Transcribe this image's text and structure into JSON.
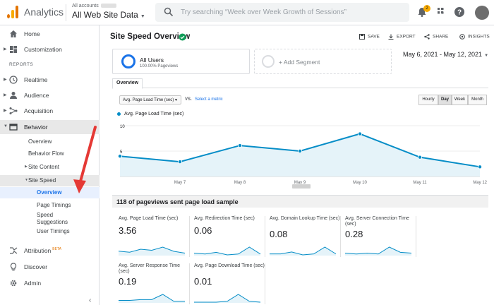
{
  "app": {
    "title": "Analytics",
    "account_crumb": "All accounts",
    "account_name": "All Web Site Data",
    "search_placeholder": "Try searching “Week over Week Growth of Sessions”",
    "notification_count": "2"
  },
  "sidebar": {
    "top_items": [
      {
        "label": "Home",
        "icon": "home-icon"
      },
      {
        "label": "Customization",
        "icon": "dashboard-icon"
      }
    ],
    "reports_heading": "REPORTS",
    "report_items": [
      {
        "label": "Realtime",
        "icon": "clock-icon"
      },
      {
        "label": "Audience",
        "icon": "person-icon"
      },
      {
        "label": "Acquisition",
        "icon": "acquisition-icon"
      },
      {
        "label": "Behavior",
        "icon": "behavior-icon"
      }
    ],
    "behavior_children": {
      "overview": "Overview",
      "behavior_flow": "Behavior Flow",
      "site_content": "Site Content",
      "site_speed": "Site Speed"
    },
    "site_speed_children": {
      "overview": "Overview",
      "page_timings": "Page Timings",
      "speed_suggestions_1": "Speed",
      "speed_suggestions_2": "Suggestions",
      "user_timings": "User Timings"
    },
    "bottom_items": [
      {
        "label": "Attribution",
        "badge": "BETA",
        "icon": "attribution-icon"
      },
      {
        "label": "Discover",
        "icon": "lightbulb-icon"
      },
      {
        "label": "Admin",
        "icon": "gear-icon"
      }
    ]
  },
  "header": {
    "title": "Site Speed Overview",
    "actions": {
      "save": "SAVE",
      "export": "EXPORT",
      "share": "SHARE",
      "insights": "INSIGHTS"
    }
  },
  "segments": {
    "active_title": "All Users",
    "active_sub": "100.00% Pageviews",
    "add_label": "+ Add Segment"
  },
  "date_range": "May 6, 2021 - May 12, 2021",
  "tabs": {
    "overview": "Overview"
  },
  "metric_controls": {
    "metric": "Avg. Page Load Time (sec)",
    "vs": "VS.",
    "select_metric": "Select a metric",
    "granularity": [
      "Hourly",
      "Day",
      "Week",
      "Month"
    ],
    "active_granularity": "Day"
  },
  "chart_data": {
    "type": "line",
    "title": "",
    "series": [
      {
        "name": "Avg. Page Load Time (sec)",
        "values": [
          4.0,
          2.9,
          6.1,
          5.0,
          8.4,
          3.8,
          1.9
        ]
      }
    ],
    "x": [
      "May 6",
      "May 7",
      "May 8",
      "May 9",
      "May 10",
      "May 11",
      "May 12"
    ],
    "x_labels_shown": [
      "",
      "May 7",
      "May 8",
      "May 9",
      "May 10",
      "May 11",
      "May 12"
    ],
    "ylim": [
      0,
      10
    ],
    "y_labels_shown": [
      "10",
      "5"
    ],
    "color": "#058dc7"
  },
  "summary": {
    "pageviews_text": "118 of pageviews sent page load sample"
  },
  "tiles": [
    {
      "title": "Avg. Page Load Time (sec)",
      "value": "3.56",
      "spark": [
        4.0,
        2.9,
        6.1,
        5.0,
        8.4,
        3.8,
        1.9
      ]
    },
    {
      "title": "Avg. Redirection Time (sec)",
      "value": "0.06",
      "spark": [
        0.2,
        0.1,
        0.3,
        0.0,
        0.1,
        0.9,
        0.1
      ]
    },
    {
      "title": "Avg. Domain Lookup Time (sec)",
      "value": "0.08",
      "spark": [
        0.1,
        0.1,
        0.3,
        0.0,
        0.1,
        0.8,
        0.1
      ]
    },
    {
      "title": "Avg. Server Connection Time (sec)",
      "value": "0.28",
      "spark": [
        0.2,
        0.1,
        0.2,
        0.1,
        0.9,
        0.3,
        0.2
      ]
    },
    {
      "title": "Avg. Server Response Time (sec)",
      "value": "0.19",
      "spark": [
        0.2,
        0.2,
        0.3,
        0.3,
        0.9,
        0.1,
        0.1
      ]
    },
    {
      "title": "Avg. Page Download Time (sec)",
      "value": "0.01",
      "spark": [
        0.0,
        0.0,
        0.0,
        0.1,
        0.9,
        0.1,
        0.0
      ]
    }
  ],
  "colors": {
    "accent": "#1a73e8",
    "chart_line": "#058dc7",
    "annotation_arrow": "#e53935",
    "verified": "#0f9d58"
  }
}
